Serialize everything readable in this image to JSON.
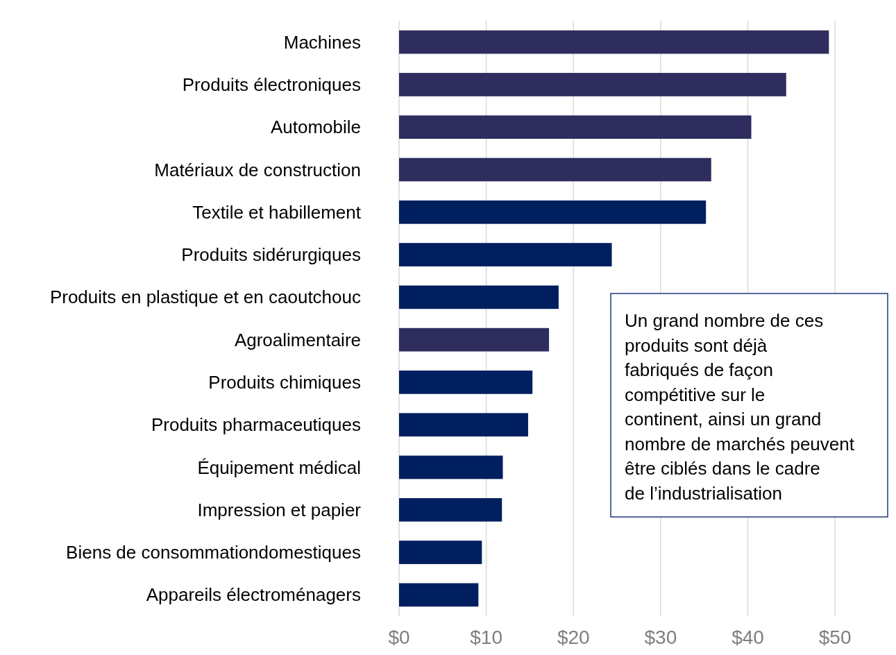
{
  "chart_data": {
    "type": "bar",
    "orientation": "horizontal",
    "categories": [
      "Machines",
      "Produits électroniques",
      "Automobile",
      "Matériaux de construction",
      "Textile et habillement",
      "Produits sidérurgiques",
      "Produits en plastique et en caoutchouc",
      "Agroalimentaire",
      "Produits chimiques",
      "Produits pharmaceutiques",
      "Équipement médical",
      "Impression et papier",
      "Biens de consommationdomestiques",
      "Appareils électroménagers"
    ],
    "values": [
      49.3,
      44.4,
      40.4,
      35.8,
      35.2,
      24.4,
      18.3,
      17.2,
      15.3,
      14.8,
      11.9,
      11.8,
      9.5,
      9.1
    ],
    "colors": [
      "#2e2d5e",
      "#2e2d5e",
      "#2e2d5e",
      "#2e2d5e",
      "#001f5f",
      "#001f5f",
      "#001f5f",
      "#2e2d5e",
      "#001f5f",
      "#001f5f",
      "#001f5f",
      "#001f5f",
      "#001f5f",
      "#001f5f"
    ],
    "xlim": [
      0,
      56.2
    ],
    "xticks": [
      {
        "value": 0,
        "label": "$0"
      },
      {
        "value": 10,
        "label": "$10"
      },
      {
        "value": 20,
        "label": "$20"
      },
      {
        "value": 30,
        "label": "$30"
      },
      {
        "value": 40,
        "label": "$40"
      },
      {
        "value": 50,
        "label": "$50"
      }
    ],
    "grid": "x",
    "annotations": [
      "Un grand nombre de ces produits sont déjà fabriqués de façon compétitive sur le continent, ainsi un grand nombre de marchés peuvent être ciblés dans le cadre de l’industrialisation"
    ]
  }
}
